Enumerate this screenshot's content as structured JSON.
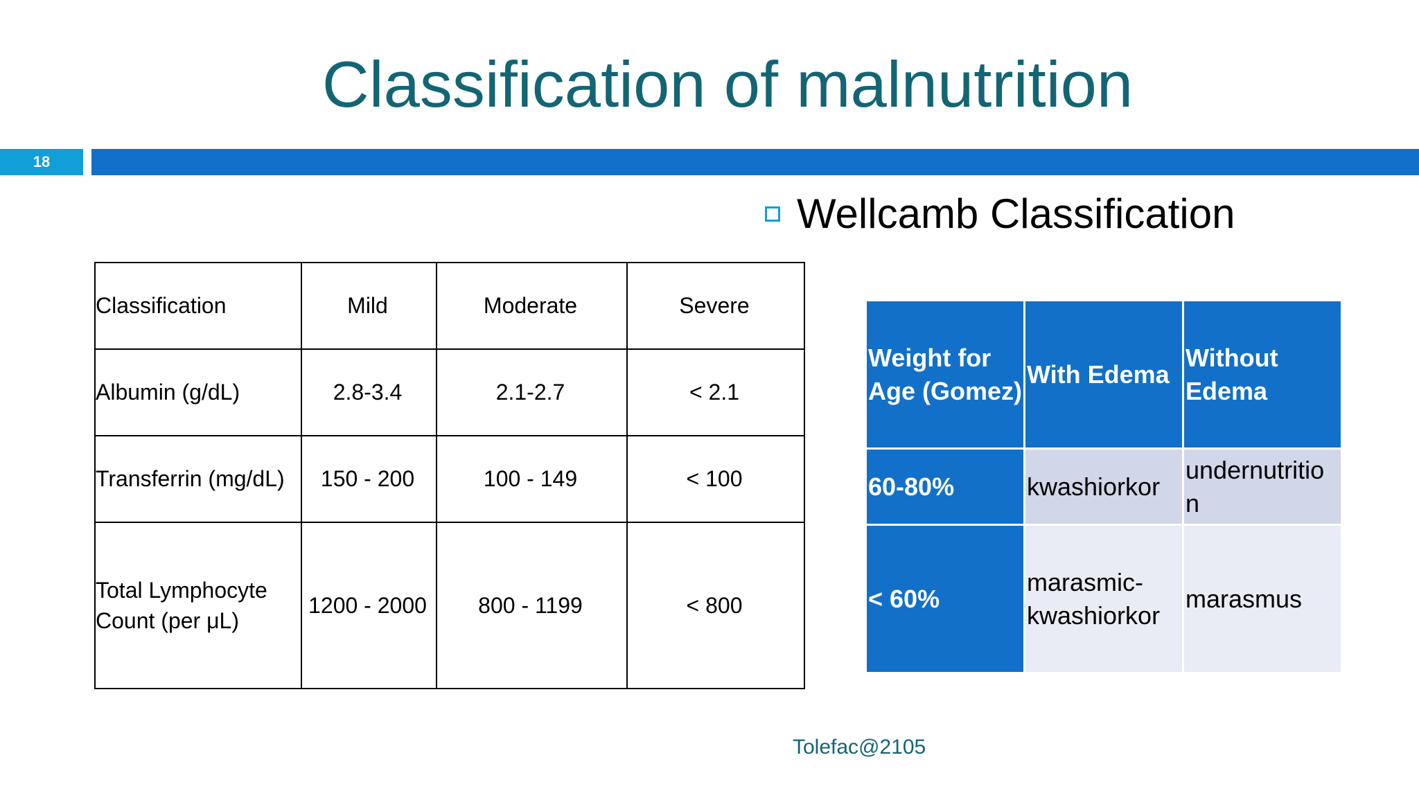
{
  "slide": {
    "title": "Classification of malnutrition",
    "number": "18",
    "footer": "Tolefac@2105"
  },
  "bullet": {
    "text": "Wellcamb Classification"
  },
  "left_table": {
    "headers": [
      "Classification",
      "Mild",
      "Moderate",
      "Severe"
    ],
    "rows": [
      [
        "Albumin (g/dL)",
        "2.8-3.4",
        "2.1-2.7",
        "< 2.1"
      ],
      [
        "Transferrin (mg/dL)",
        "150 - 200",
        "100 - 149",
        "< 100"
      ],
      [
        "Total Lymphocyte Count (per μL)",
        "1200 - 2000",
        "800 - 1199",
        "< 800"
      ]
    ]
  },
  "right_table": {
    "headers": [
      "Weight for Age (Gomez)",
      "With Edema",
      "Without Edema"
    ],
    "rows": [
      [
        "60-80%",
        "kwashiorkor",
        "undernutritio n"
      ],
      [
        "< 60%",
        "marasmic-kwashiorkor",
        "marasmus"
      ]
    ]
  }
}
